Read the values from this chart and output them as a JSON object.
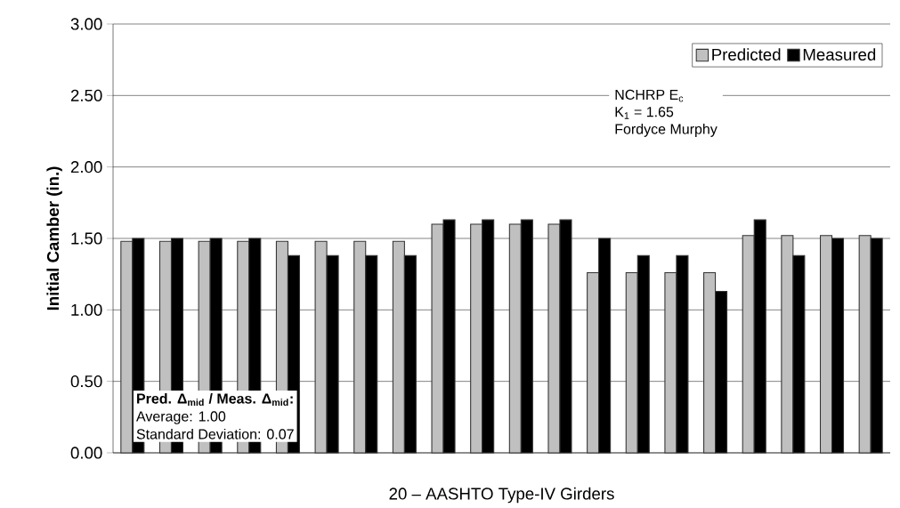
{
  "chart_data": {
    "type": "bar",
    "xlabel": "20 – AASHTO Type-IV Girders",
    "ylabel": "Initial Camber (in.)",
    "categories": [
      null,
      null,
      null,
      null,
      null,
      null,
      null,
      null,
      null,
      null,
      null,
      null,
      null,
      null,
      null,
      null,
      null,
      null,
      null,
      null
    ],
    "series": [
      {
        "name": "Predicted",
        "color": "#c0c0c0",
        "values": [
          1.48,
          1.48,
          1.48,
          1.48,
          1.48,
          1.48,
          1.48,
          1.48,
          1.6,
          1.6,
          1.6,
          1.6,
          1.26,
          1.26,
          1.26,
          1.26,
          1.52,
          1.52,
          1.52,
          1.52
        ]
      },
      {
        "name": "Measured",
        "color": "#000000",
        "values": [
          1.5,
          1.5,
          1.5,
          1.5,
          1.38,
          1.38,
          1.38,
          1.38,
          1.63,
          1.63,
          1.63,
          1.63,
          1.5,
          1.38,
          1.38,
          1.13,
          1.63,
          1.38,
          1.5,
          1.5
        ]
      }
    ],
    "ylim": [
      0,
      3
    ],
    "yticks": [
      {
        "value": 0,
        "label": "0.00"
      },
      {
        "value": 0.5,
        "label": "0.50"
      },
      {
        "value": 1,
        "label": "1.00"
      },
      {
        "value": 1.5,
        "label": "1.50"
      },
      {
        "value": 2,
        "label": "2.00"
      },
      {
        "value": 2.5,
        "label": "2.50"
      },
      {
        "value": 3,
        "label": "3.00"
      }
    ],
    "grid": "y",
    "legend": "top right",
    "annotations": [
      "Pred. Δ$_{mid}$ / Meas. Δ$_{mid}$:",
      "Average: 1.00",
      "Standard Deviation: 0.07",
      "NCHRP E$_{c}$",
      "K$_{1}$ = 1.65",
      "Fordyce Murphy"
    ]
  }
}
